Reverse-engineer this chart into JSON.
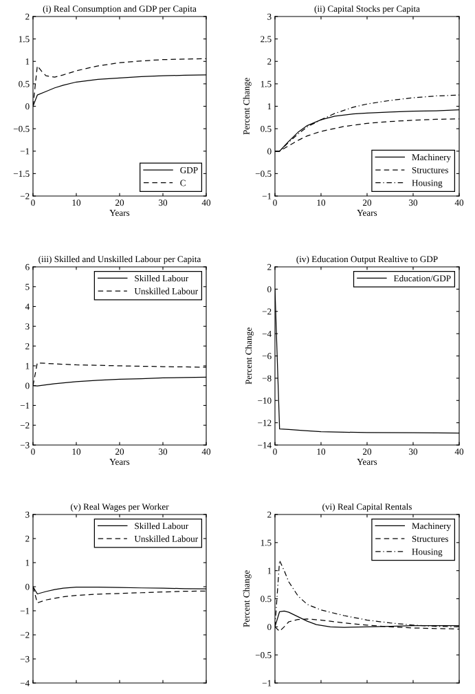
{
  "chart_data": [
    {
      "type": "line",
      "title": "(i) Real Consumption and GDP per Capita",
      "xlabel": "Years",
      "xlim": [
        0,
        40
      ],
      "xticks": [
        0,
        10,
        20,
        30,
        40
      ],
      "ylim": [
        -2,
        2
      ],
      "yticks": [
        {
          "value": -2,
          "label": "−2"
        },
        {
          "value": -1.5,
          "label": "−1.5"
        },
        {
          "value": -1,
          "label": "−1"
        },
        {
          "value": -0.5,
          "label": "−0.5"
        },
        0,
        0.5,
        1,
        1.5,
        2
      ],
      "legend": "bottom right",
      "grid": false,
      "series": [
        {
          "name": "GDP",
          "color": "#000000",
          "line_style": "solid",
          "x": [
            0,
            1,
            3,
            5,
            7,
            10,
            15,
            20,
            25,
            30,
            35,
            40
          ],
          "values": [
            0,
            0.25,
            0.33,
            0.41,
            0.47,
            0.54,
            0.6,
            0.63,
            0.66,
            0.68,
            0.69,
            0.7
          ]
        },
        {
          "name": "C",
          "color": "#000000",
          "line_style": "dashed",
          "x": [
            0,
            1,
            2,
            3,
            5,
            7,
            10,
            15,
            20,
            25,
            30,
            35,
            40
          ],
          "values": [
            0,
            0.9,
            0.78,
            0.68,
            0.65,
            0.7,
            0.79,
            0.9,
            0.97,
            1.01,
            1.04,
            1.05,
            1.06
          ]
        }
      ]
    },
    {
      "type": "line",
      "title": "(ii) Capital Stocks per Capita",
      "xlabel": "Years",
      "ylabel": "Percent Change",
      "xlim": [
        0,
        40
      ],
      "xticks": [
        0,
        10,
        20,
        30,
        40
      ],
      "ylim": [
        -1,
        3
      ],
      "yticks": [
        {
          "value": -1,
          "label": "−1"
        },
        {
          "value": -0.5,
          "label": "−0.5"
        },
        0,
        0.5,
        1,
        1.5,
        2,
        2.5,
        3
      ],
      "legend": "bottom right",
      "grid": false,
      "series": [
        {
          "name": "Machinery",
          "color": "#000000",
          "line_style": "solid",
          "x": [
            0,
            1,
            3,
            5,
            7,
            10,
            13,
            17,
            20,
            25,
            30,
            35,
            40
          ],
          "values": [
            0,
            0,
            0.22,
            0.42,
            0.57,
            0.7,
            0.78,
            0.83,
            0.85,
            0.87,
            0.89,
            0.9,
            0.92
          ]
        },
        {
          "name": "Structures",
          "color": "#000000",
          "line_style": "dashed",
          "x": [
            0,
            1,
            3,
            5,
            7,
            10,
            15,
            20,
            25,
            30,
            35,
            40
          ],
          "values": [
            0,
            0,
            0.12,
            0.24,
            0.34,
            0.44,
            0.55,
            0.62,
            0.66,
            0.69,
            0.71,
            0.72
          ]
        },
        {
          "name": "Housing",
          "color": "#000000",
          "line_style": "dashdot",
          "x": [
            0,
            1,
            3,
            5,
            7,
            10,
            13,
            17,
            20,
            25,
            30,
            35,
            40
          ],
          "values": [
            0,
            0,
            0.2,
            0.38,
            0.54,
            0.7,
            0.84,
            0.98,
            1.05,
            1.13,
            1.19,
            1.23,
            1.25
          ]
        }
      ]
    },
    {
      "type": "line",
      "title": "(iii) Skilled and Unskilled Labour per Capita",
      "xlabel": "Years",
      "xlim": [
        0,
        40
      ],
      "xticks": [
        0,
        10,
        20,
        30,
        40
      ],
      "ylim": [
        -3,
        6
      ],
      "yticks": [
        {
          "value": -3,
          "label": "−3"
        },
        {
          "value": -2,
          "label": "−2"
        },
        {
          "value": -1,
          "label": "−1"
        },
        0,
        1,
        2,
        3,
        4,
        5,
        6
      ],
      "legend": "top right",
      "grid": false,
      "series": [
        {
          "name": "Skilled Labour",
          "color": "#000000",
          "line_style": "solid",
          "x": [
            0,
            1,
            5,
            10,
            15,
            20,
            25,
            30,
            35,
            40
          ],
          "values": [
            0,
            -0.02,
            0.1,
            0.2,
            0.27,
            0.32,
            0.35,
            0.39,
            0.41,
            0.43
          ]
        },
        {
          "name": "Unskilled Labour",
          "color": "#000000",
          "line_style": "dashed",
          "x": [
            0,
            1,
            5,
            10,
            20,
            30,
            40
          ],
          "values": [
            0,
            1.15,
            1.1,
            1.05,
            1.0,
            0.96,
            0.93
          ]
        }
      ]
    },
    {
      "type": "line",
      "title": "(iv) Education Output Realtive to GDP",
      "xlabel": "Years",
      "ylabel": "Percent Change",
      "xlim": [
        0,
        40
      ],
      "xticks": [
        0,
        10,
        20,
        30,
        40
      ],
      "ylim": [
        -14,
        2
      ],
      "yticks": [
        {
          "value": -14,
          "label": "−14"
        },
        {
          "value": -12,
          "label": "−12"
        },
        {
          "value": -10,
          "label": "−10"
        },
        {
          "value": -8,
          "label": "−8"
        },
        {
          "value": -6,
          "label": "−6"
        },
        {
          "value": -4,
          "label": "−4"
        },
        {
          "value": -2,
          "label": "−2"
        },
        0,
        2
      ],
      "legend": "top right",
      "grid": false,
      "series": [
        {
          "name": "Education/GDP",
          "color": "#000000",
          "line_style": "solid",
          "x": [
            0,
            1,
            3,
            6,
            10,
            15,
            20,
            30,
            40
          ],
          "values": [
            0,
            -12.55,
            -12.6,
            -12.7,
            -12.8,
            -12.85,
            -12.88,
            -12.9,
            -12.92
          ]
        }
      ]
    },
    {
      "type": "line",
      "title": "(v) Real Wages per Worker",
      "xlim": [
        0,
        40
      ],
      "xticks": [
        {
          "value": 0,
          "label": null
        },
        {
          "value": 10,
          "label": null
        },
        {
          "value": 20,
          "label": null
        },
        {
          "value": 30,
          "label": null
        },
        {
          "value": 40,
          "label": null
        }
      ],
      "ylim": [
        -4,
        3
      ],
      "yticks": [
        {
          "value": -4,
          "label": "−4"
        },
        {
          "value": -3,
          "label": "−3"
        },
        {
          "value": -2,
          "label": "−2"
        },
        {
          "value": -1,
          "label": "−1"
        },
        0,
        1,
        2,
        3
      ],
      "tick_labels": "y",
      "legend": "top right",
      "grid": false,
      "series": [
        {
          "name": "Skilled Labour",
          "color": "#000000",
          "line_style": "solid",
          "x": [
            0,
            1,
            3,
            5,
            7,
            10,
            15,
            20,
            25,
            30,
            35,
            40
          ],
          "values": [
            0,
            -0.3,
            -0.2,
            -0.12,
            -0.06,
            -0.02,
            -0.02,
            -0.03,
            -0.05,
            -0.06,
            -0.08,
            -0.09
          ]
        },
        {
          "name": "Unskilled Labour",
          "color": "#000000",
          "line_style": "dashed",
          "x": [
            0,
            1,
            3,
            5,
            7,
            10,
            15,
            20,
            25,
            30,
            35,
            40
          ],
          "values": [
            0,
            -0.67,
            -0.55,
            -0.48,
            -0.42,
            -0.36,
            -0.31,
            -0.28,
            -0.25,
            -0.22,
            -0.19,
            -0.18
          ]
        }
      ]
    },
    {
      "type": "line",
      "title": "(vi) Real Capital Rentals",
      "ylabel": "Percent Change",
      "xlim": [
        0,
        40
      ],
      "xticks": [
        {
          "value": 0,
          "label": null
        },
        {
          "value": 10,
          "label": null
        },
        {
          "value": 20,
          "label": null
        },
        {
          "value": 30,
          "label": null
        },
        {
          "value": 40,
          "label": null
        }
      ],
      "ylim": [
        -1,
        2
      ],
      "yticks": [
        {
          "value": -1,
          "label": "−1"
        },
        {
          "value": -0.5,
          "label": "−0.5"
        },
        0,
        0.5,
        1,
        1.5,
        2
      ],
      "tick_labels": "y",
      "legend": "top right",
      "grid": false,
      "series": [
        {
          "name": "Machinery",
          "color": "#000000",
          "line_style": "solid",
          "x": [
            0,
            1,
            2,
            3,
            5,
            7,
            9,
            12,
            15,
            20,
            25,
            30,
            40
          ],
          "values": [
            0,
            0.27,
            0.28,
            0.26,
            0.18,
            0.1,
            0.04,
            0,
            -0.01,
            0,
            0.01,
            0.02,
            0.02
          ]
        },
        {
          "name": "Structures",
          "color": "#000000",
          "line_style": "dashed",
          "x": [
            0,
            1,
            2,
            3,
            5,
            7,
            10,
            15,
            20,
            25,
            30,
            35,
            40
          ],
          "values": [
            0,
            -0.08,
            0.0,
            0.09,
            0.13,
            0.14,
            0.12,
            0.07,
            0.03,
            0,
            -0.02,
            -0.03,
            -0.04
          ]
        },
        {
          "name": "Housing",
          "color": "#000000",
          "line_style": "dashdot",
          "x": [
            0,
            1,
            2,
            3,
            5,
            7,
            10,
            15,
            20,
            25,
            30,
            35,
            40
          ],
          "values": [
            0,
            1.18,
            1.0,
            0.8,
            0.55,
            0.4,
            0.3,
            0.2,
            0.12,
            0.07,
            0.03,
            0.01,
            0.0
          ]
        }
      ]
    }
  ]
}
